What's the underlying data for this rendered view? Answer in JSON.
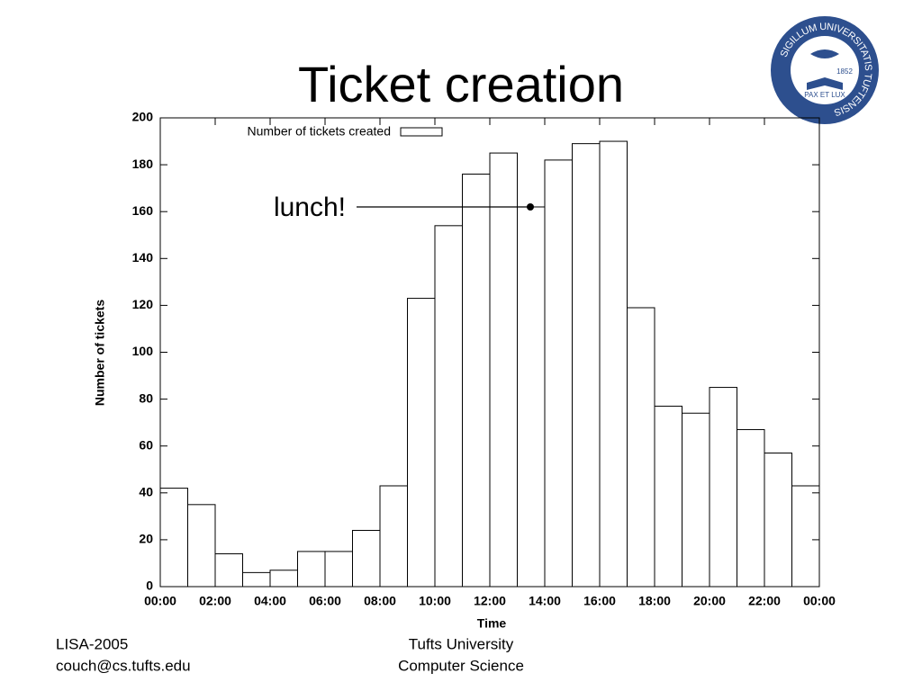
{
  "chart_data": {
    "type": "histogram",
    "title": "Ticket creation",
    "x_label": "Time",
    "y_label": "Number of tickets",
    "legend": "Number of tickets created",
    "legend_position": "top",
    "bins": [
      0,
      1,
      2,
      3,
      4,
      5,
      6,
      7,
      8,
      9,
      10,
      11,
      12,
      13,
      14,
      15,
      16,
      17,
      18,
      19,
      20,
      21,
      22,
      23,
      24
    ],
    "values": [
      42,
      35,
      14,
      6,
      7,
      15,
      15,
      24,
      43,
      123,
      154,
      176,
      185,
      162,
      182,
      189,
      190,
      119,
      77,
      74,
      85,
      67,
      57,
      43
    ],
    "color": "#ffffff",
    "xlim": [
      0,
      24
    ],
    "xticks": [
      {
        "value": 0,
        "label": "00:00"
      },
      {
        "value": 2,
        "label": "02:00"
      },
      {
        "value": 4,
        "label": "04:00"
      },
      {
        "value": 6,
        "label": "06:00"
      },
      {
        "value": 8,
        "label": "08:00"
      },
      {
        "value": 10,
        "label": "10:00"
      },
      {
        "value": 12,
        "label": "12:00"
      },
      {
        "value": 14,
        "label": "14:00"
      },
      {
        "value": 16,
        "label": "16:00"
      },
      {
        "value": 18,
        "label": "18:00"
      },
      {
        "value": 20,
        "label": "20:00"
      },
      {
        "value": 22,
        "label": "22:00"
      },
      {
        "value": 24,
        "label": "00:00"
      }
    ],
    "ylim": [
      0,
      200
    ],
    "yticks": [
      0,
      20,
      40,
      60,
      80,
      100,
      120,
      140,
      160,
      180,
      200
    ],
    "annotation": "lunch!"
  },
  "footer": {
    "left": [
      "LISA-2005",
      "couch@cs.tufts.edu"
    ],
    "center": [
      "Tufts University",
      "Computer Science"
    ]
  },
  "logo": {
    "ring": "SIGILLUM UNIVERSITATIS TUFTENSIS",
    "motto": "PAX ET LUX",
    "year": "1852"
  }
}
